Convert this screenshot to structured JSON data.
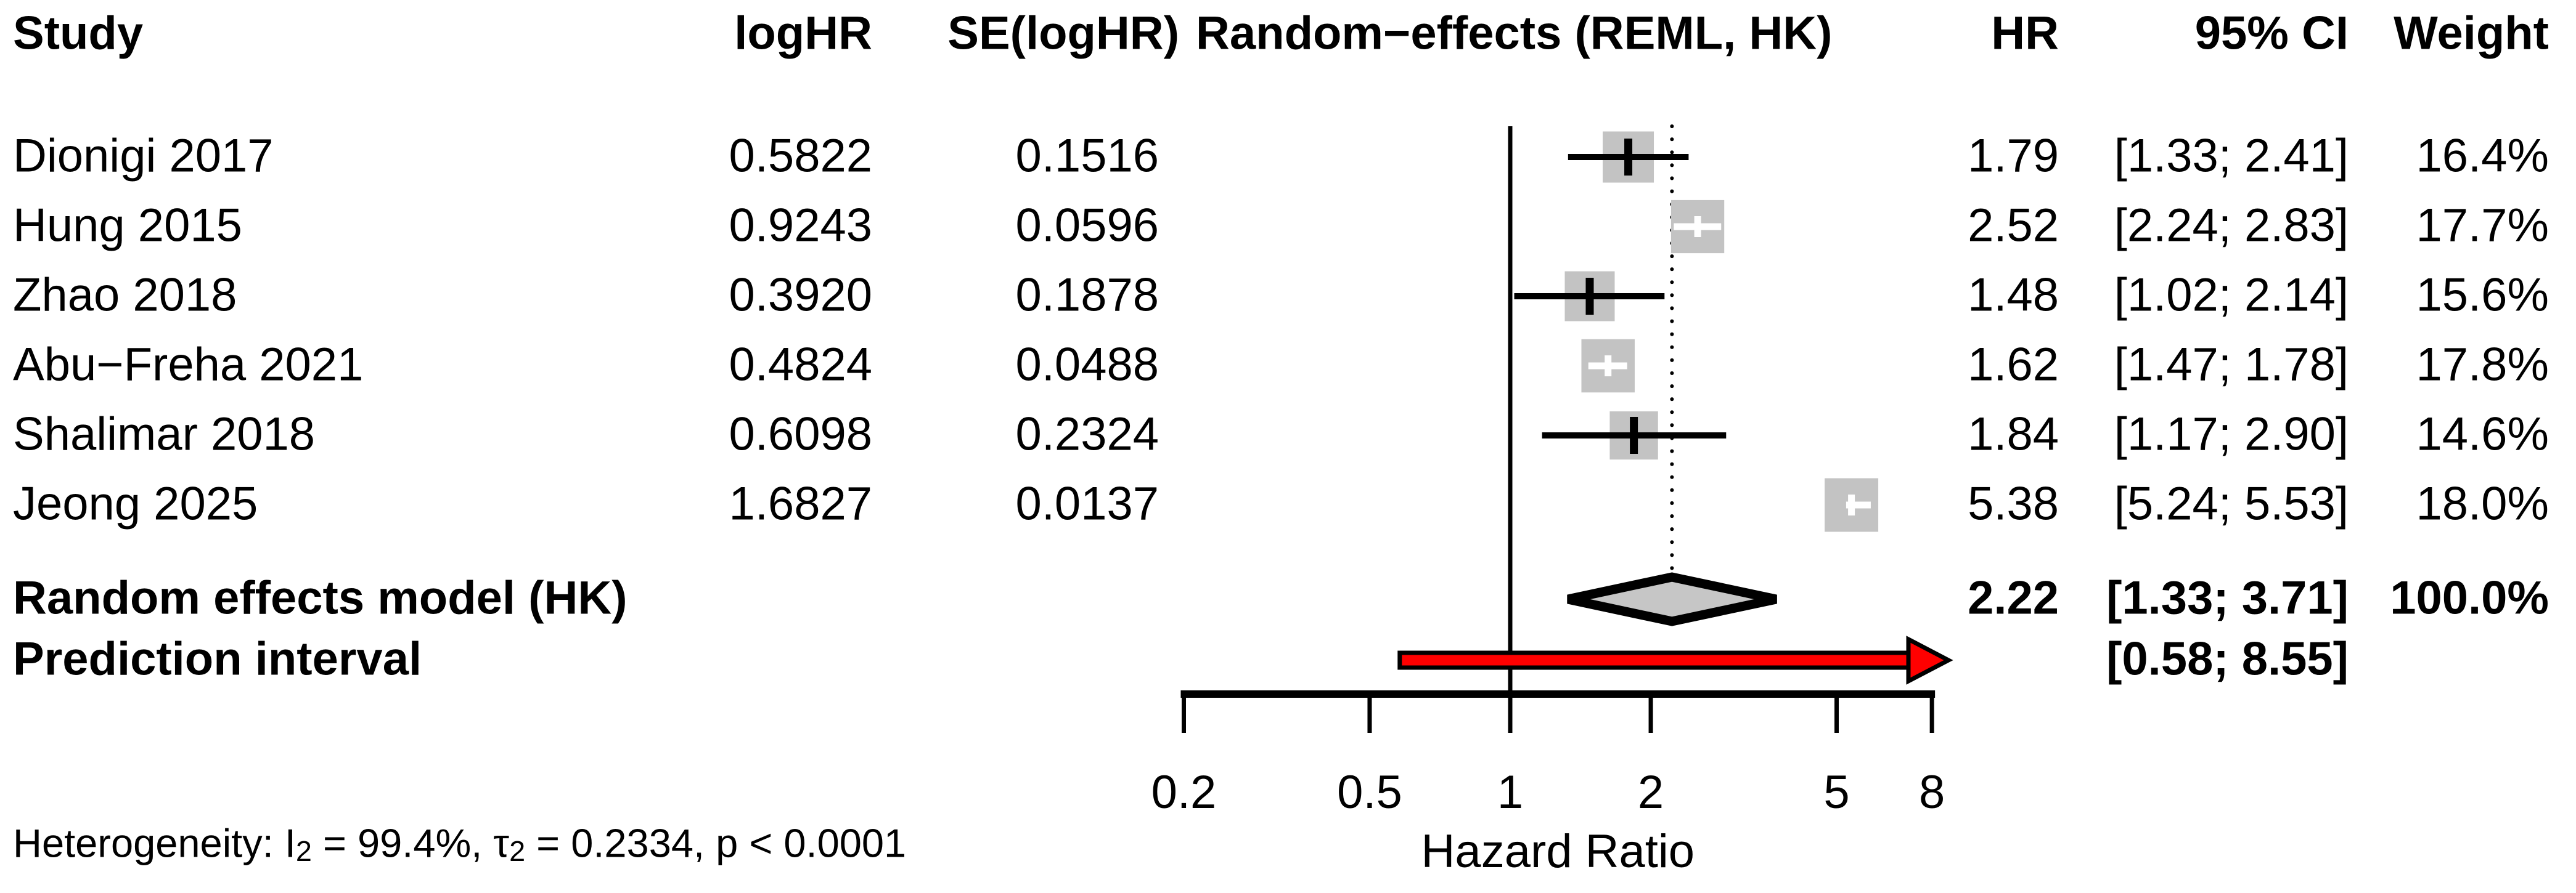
{
  "table": {
    "headers": {
      "study": "Study",
      "loghr": "logHR",
      "se": "SE(logHR)",
      "plot": "Random−effects (REML, HK)",
      "hr": "HR",
      "ci": "95% CI",
      "weight": "Weight"
    },
    "rows": [
      {
        "study": "Dionigi 2017",
        "loghr": "0.5822",
        "se": "0.1516",
        "hr": "1.79",
        "ci": "[1.33; 2.41]",
        "weight": "16.4%"
      },
      {
        "study": "Hung 2015",
        "loghr": "0.9243",
        "se": "0.0596",
        "hr": "2.52",
        "ci": "[2.24; 2.83]",
        "weight": "17.7%"
      },
      {
        "study": "Zhao 2018",
        "loghr": "0.3920",
        "se": "0.1878",
        "hr": "1.48",
        "ci": "[1.02; 2.14]",
        "weight": "15.6%"
      },
      {
        "study": "Abu−Freha 2021",
        "loghr": "0.4824",
        "se": "0.0488",
        "hr": "1.62",
        "ci": "[1.47; 1.78]",
        "weight": "17.8%"
      },
      {
        "study": "Shalimar 2018",
        "loghr": "0.6098",
        "se": "0.2324",
        "hr": "1.84",
        "ci": "[1.17; 2.90]",
        "weight": "14.6%"
      },
      {
        "study": "Jeong 2025",
        "loghr": "1.6827",
        "se": "0.0137",
        "hr": "5.38",
        "ci": "[5.24; 5.53]",
        "weight": "18.0%"
      }
    ],
    "summary": {
      "label": "Random effects model (HK)",
      "hr": "2.22",
      "ci": "[1.33; 3.71]",
      "weight": "100.0%"
    },
    "prediction": {
      "label": "Prediction interval",
      "ci": "[0.58; 8.55]"
    },
    "heterogeneity_parts": {
      "p1": "Heterogeneity: I",
      "s1": "2",
      "p2": " = 99.4%, τ",
      "s2": "2",
      "p3": " = 0.2334, p < 0.0001"
    }
  },
  "colors": {
    "square": "#c3c3c3",
    "diamond_fill": "#c6c6c6",
    "arrow_red": "#ff0000",
    "line_black": "#000000",
    "white": "#ffffff"
  },
  "chart_data": {
    "type": "forest",
    "x_scale": "log",
    "xlabel": "Hazard Ratio",
    "x_ticks": [
      0.2,
      0.5,
      1,
      2,
      5,
      8
    ],
    "x_tick_labels": [
      "0.2",
      "0.5",
      "1",
      "2",
      "5",
      "8"
    ],
    "axis_range": [
      0.2,
      8
    ],
    "null_line": 1,
    "pooled_ref_line": 2.22,
    "studies": [
      {
        "study": "Dionigi 2017",
        "logHR": 0.5822,
        "SE_logHR": 0.1516,
        "HR": 1.79,
        "ci_low": 1.33,
        "ci_high": 2.41,
        "weight_pct": 16.4
      },
      {
        "study": "Hung 2015",
        "logHR": 0.9243,
        "SE_logHR": 0.0596,
        "HR": 2.52,
        "ci_low": 2.24,
        "ci_high": 2.83,
        "weight_pct": 17.7
      },
      {
        "study": "Zhao 2018",
        "logHR": 0.392,
        "SE_logHR": 0.1878,
        "HR": 1.48,
        "ci_low": 1.02,
        "ci_high": 2.14,
        "weight_pct": 15.6
      },
      {
        "study": "Abu−Freha 2021",
        "logHR": 0.4824,
        "SE_logHR": 0.0488,
        "HR": 1.62,
        "ci_low": 1.47,
        "ci_high": 1.78,
        "weight_pct": 17.8
      },
      {
        "study": "Shalimar 2018",
        "logHR": 0.6098,
        "SE_logHR": 0.2324,
        "HR": 1.84,
        "ci_low": 1.17,
        "ci_high": 2.9,
        "weight_pct": 14.6
      },
      {
        "study": "Jeong 2025",
        "logHR": 1.6827,
        "SE_logHR": 0.0137,
        "HR": 5.38,
        "ci_low": 5.24,
        "ci_high": 5.53,
        "weight_pct": 18.0
      }
    ],
    "pooled": {
      "label": "Random effects model (HK)",
      "HR": 2.22,
      "ci_low": 1.33,
      "ci_high": 3.71,
      "weight_pct": 100.0
    },
    "prediction_interval": {
      "label": "Prediction interval",
      "ci_low": 0.58,
      "ci_high": 8.55
    },
    "heterogeneity": {
      "I2_pct": 99.4,
      "tau2": 0.2334,
      "p": "< 0.0001"
    }
  }
}
